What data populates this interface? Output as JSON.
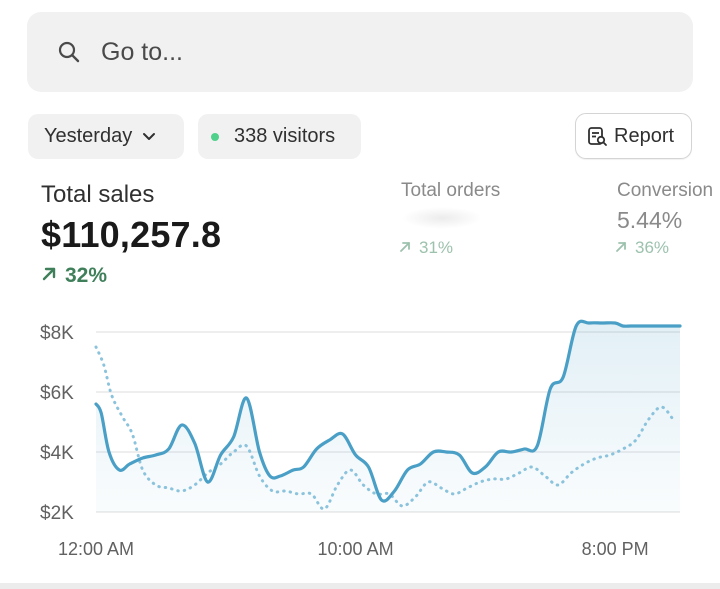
{
  "search": {
    "placeholder": "Go to..."
  },
  "filters": {
    "date_label": "Yesterday",
    "visitors_label": "338 visitors"
  },
  "report_button": {
    "label": "Report"
  },
  "metrics": {
    "total_sales": {
      "title": "Total sales",
      "value": "$110,257.8",
      "change": "32%"
    },
    "total_orders": {
      "title": "Total orders",
      "change": "31%"
    },
    "conversion": {
      "title": "Conversion",
      "value": "5.44%",
      "change": "36%"
    }
  },
  "colors": {
    "accent_line": "#4a9fc6",
    "comparison_line": "#8cc3dc",
    "positive": "#3f7f5a",
    "positive_muted": "#9cc2ad",
    "visitor_dot": "#4fd18b"
  },
  "chart_data": {
    "type": "line",
    "y_ticks": [
      "$8K",
      "$6K",
      "$4K",
      "$2K"
    ],
    "y_tick_values": [
      8000,
      6000,
      4000,
      2000
    ],
    "x_tick_labels": [
      "12:00 AM",
      "10:00 AM",
      "8:00 PM"
    ],
    "x_tick_hours": [
      0,
      10,
      20
    ],
    "ylim": [
      2000,
      8000
    ],
    "xlim": [
      0,
      22.5
    ],
    "grid": true,
    "series": [
      {
        "style": "solid",
        "x": [
          0,
          0.2,
          0.5,
          0.9,
          1.3,
          1.8,
          2.3,
          2.8,
          3.3,
          3.8,
          4.3,
          4.8,
          5.3,
          5.8,
          6.3,
          6.7,
          7.1,
          7.6,
          8.0,
          8.5,
          9.0,
          9.5,
          10.0,
          10.5,
          11.0,
          11.5,
          12.0,
          12.5,
          13.0,
          13.5,
          14.0,
          14.5,
          15.0,
          15.5,
          16.0,
          16.5,
          17.0,
          17.5,
          18.0,
          18.5,
          19.0,
          19.5,
          20.0,
          20.3,
          20.6,
          21.0,
          21.5,
          22.0,
          22.5
        ],
        "values": [
          5600,
          5300,
          4000,
          3400,
          3600,
          3800,
          3900,
          4100,
          4900,
          4300,
          3000,
          3900,
          4500,
          5800,
          4000,
          3200,
          3200,
          3400,
          3500,
          4100,
          4400,
          4600,
          3900,
          3500,
          2400,
          2700,
          3400,
          3600,
          4000,
          4000,
          3900,
          3300,
          3500,
          4000,
          4000,
          4100,
          4200,
          6100,
          6500,
          8200,
          8300,
          8300,
          8300,
          8200,
          8200,
          8200,
          8200,
          8200,
          8200
        ]
      },
      {
        "style": "dotted",
        "x": [
          0,
          0.3,
          0.6,
          1.0,
          1.4,
          1.8,
          2.3,
          2.8,
          3.3,
          3.8,
          4.3,
          4.8,
          5.3,
          5.8,
          6.3,
          6.8,
          7.3,
          7.8,
          8.3,
          8.8,
          9.3,
          9.8,
          10.3,
          10.8,
          11.3,
          11.8,
          12.3,
          12.8,
          13.3,
          13.8,
          14.3,
          14.8,
          15.3,
          15.8,
          16.3,
          16.8,
          17.3,
          17.8,
          18.3,
          18.8,
          19.3,
          19.8,
          20.3,
          20.8,
          21.3,
          21.8,
          22.3
        ],
        "values": [
          7500,
          6900,
          5900,
          5200,
          4600,
          3400,
          2900,
          2800,
          2700,
          2900,
          3300,
          3600,
          4000,
          4200,
          3200,
          2700,
          2700,
          2600,
          2600,
          2100,
          2900,
          3400,
          2900,
          2600,
          2600,
          2200,
          2500,
          3000,
          2800,
          2600,
          2800,
          3000,
          3100,
          3100,
          3300,
          3500,
          3200,
          2900,
          3300,
          3600,
          3800,
          3900,
          4100,
          4400,
          5100,
          5500,
          5000
        ]
      }
    ]
  }
}
